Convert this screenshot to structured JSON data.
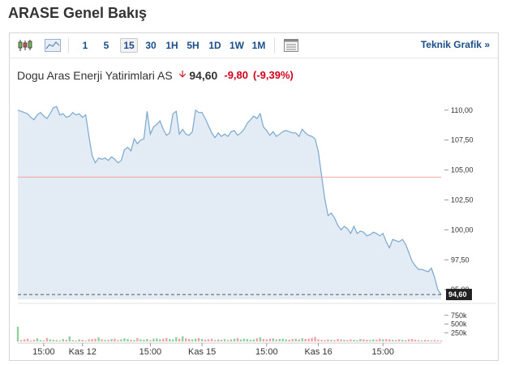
{
  "page": {
    "title": "ARASE Genel Bakış"
  },
  "toolbar": {
    "candle_icon": "candlestick-icon",
    "area_icon": "area-chart-icon",
    "intervals": [
      "1",
      "5",
      "15",
      "30",
      "1H",
      "5H",
      "1D",
      "1W",
      "1M"
    ],
    "active_interval": "15",
    "table_icon": "table-icon",
    "technical_link": "Teknik Grafik »"
  },
  "quote": {
    "name": "Dogu Aras Enerji Yatirimlari AS",
    "direction_icon": "down-arrow-icon",
    "price": "94,60",
    "change": "-9,80",
    "change_pct": "(-9,39%)",
    "colors": {
      "down": "#d0021b",
      "accent": "#1a4e8a"
    }
  },
  "chart_data": {
    "type": "area",
    "y_ticks": [
      "110,00",
      "107,50",
      "105,00",
      "102,50",
      "100,00",
      "97,50",
      "95,00"
    ],
    "ylim": [
      94.2,
      111.0
    ],
    "last_price_label": "94,60",
    "last_price": 94.6,
    "reference_line": 104.4,
    "volume_ticks": [
      "750k",
      "500k",
      "250k"
    ],
    "volume_max": 1000000,
    "x_labels": [
      "15:00",
      "Kas 12",
      "15:00",
      "Kas 15",
      "15:00",
      "Kas 16",
      "15:00"
    ],
    "x_label_index": [
      8,
      20,
      41,
      57,
      77,
      93,
      113
    ],
    "price": [
      110.0,
      109.9,
      109.8,
      109.7,
      109.4,
      109.2,
      109.6,
      109.8,
      109.5,
      109.3,
      109.7,
      110.2,
      110.3,
      109.6,
      109.7,
      109.4,
      109.5,
      109.8,
      109.6,
      109.7,
      109.4,
      109.6,
      107.8,
      106.2,
      105.6,
      106.0,
      105.9,
      106.0,
      105.8,
      106.1,
      105.9,
      105.6,
      105.8,
      106.7,
      106.9,
      106.6,
      107.6,
      107.2,
      107.5,
      107.6,
      109.9,
      108.0,
      108.6,
      108.8,
      109.1,
      108.4,
      107.9,
      108.1,
      109.7,
      109.9,
      108.0,
      108.4,
      108.0,
      107.9,
      108.2,
      110.0,
      109.8,
      109.8,
      109.3,
      108.7,
      108.1,
      107.7,
      108.1,
      107.8,
      108.0,
      107.8,
      108.2,
      108.3,
      107.9,
      108.1,
      108.4,
      108.9,
      109.2,
      109.5,
      109.3,
      109.7,
      108.6,
      108.3,
      107.9,
      108.2,
      107.8,
      108.0,
      108.2,
      108.3,
      108.2,
      108.1,
      108.1,
      107.8,
      108.4,
      108.1,
      107.9,
      107.8,
      107.6,
      106.5,
      104.5,
      102.6,
      101.2,
      101.4,
      101.0,
      100.4,
      100.0,
      100.3,
      100.1,
      99.7,
      100.3,
      99.7,
      99.9,
      99.8,
      99.5,
      99.6,
      99.8,
      99.7,
      99.5,
      99.7,
      99.0,
      98.5,
      99.2,
      99.1,
      99.0,
      99.2,
      98.8,
      98.1,
      97.4,
      97.0,
      96.7,
      96.7,
      96.6,
      96.5,
      96.8,
      96.0,
      95.0,
      94.6
    ],
    "volume": [
      420000,
      40000,
      60000,
      80000,
      30000,
      50000,
      90000,
      40000,
      30000,
      100000,
      60000,
      50000,
      40000,
      30000,
      70000,
      50000,
      150000,
      40000,
      30000,
      60000,
      50000,
      20000,
      60000,
      70000,
      80000,
      120000,
      60000,
      40000,
      50000,
      70000,
      80000,
      40000,
      60000,
      90000,
      70000,
      50000,
      40000,
      100000,
      60000,
      50000,
      70000,
      40000,
      80000,
      90000,
      60000,
      80000,
      100000,
      70000,
      60000,
      120000,
      80000,
      150000,
      90000,
      70000,
      60000,
      80000,
      100000,
      70000,
      50000,
      60000,
      80000,
      40000,
      60000,
      50000,
      70000,
      40000,
      60000,
      80000,
      100000,
      60000,
      80000,
      70000,
      50000,
      60000,
      90000,
      120000,
      70000,
      60000,
      80000,
      90000,
      60000,
      70000,
      80000,
      60000,
      50000,
      70000,
      80000,
      60000,
      90000,
      70000,
      80000,
      100000,
      130000,
      60000,
      50000,
      40000,
      60000,
      50000,
      40000,
      70000,
      60000,
      50000,
      40000,
      60000,
      50000,
      40000,
      70000,
      60000,
      50000,
      40000,
      60000,
      50000,
      80000,
      60000,
      70000,
      60000,
      50000,
      40000,
      60000,
      50000,
      40000,
      60000,
      70000,
      50000,
      40000,
      30000,
      50000,
      40000,
      30000,
      40000,
      30000,
      20000
    ]
  }
}
